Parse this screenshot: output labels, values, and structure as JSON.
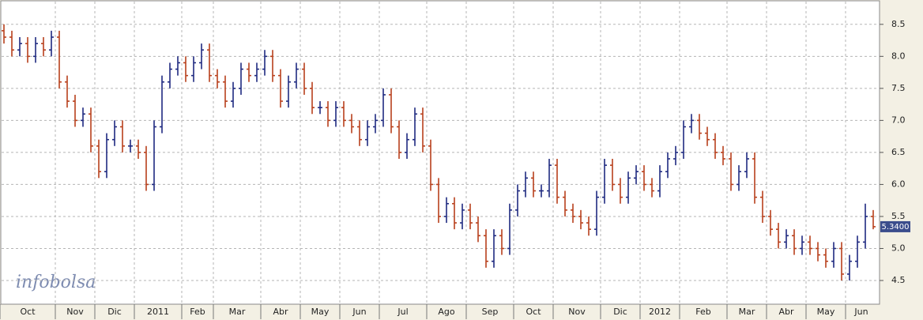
{
  "chart_data": {
    "type": "ohlc",
    "watermark": "infobolsa",
    "categories": [
      "Oct",
      null,
      null,
      null,
      null,
      null,
      null,
      "Nov",
      null,
      null,
      null,
      null,
      "Dic",
      null,
      null,
      null,
      null,
      "2011",
      null,
      null,
      null,
      null,
      null,
      "Feb",
      null,
      null,
      null,
      "Mar",
      null,
      null,
      null,
      null,
      null,
      "Abr",
      null,
      null,
      null,
      null,
      "May",
      null,
      null,
      null,
      null,
      "Jun",
      null,
      null,
      null,
      null,
      "Jul",
      null,
      null,
      null,
      null,
      null,
      "Ago",
      null,
      null,
      null,
      null,
      "Sep",
      null,
      null,
      null,
      null,
      null,
      "Oct",
      null,
      null,
      null,
      null,
      "Nov",
      null,
      null,
      null,
      null,
      null,
      "Dic",
      null,
      null,
      null,
      null,
      "2012",
      null,
      null,
      null,
      null,
      "Feb",
      null,
      null,
      null,
      null,
      null,
      "Mar",
      null,
      null,
      null,
      null,
      "Abr",
      null,
      null,
      null,
      null,
      "May",
      null,
      null,
      null,
      null,
      "Jun",
      null,
      null,
      null
    ],
    "open": [
      8.4,
      8.3,
      8.1,
      8.2,
      8.0,
      8.2,
      8.1,
      8.3,
      7.6,
      7.3,
      7.0,
      7.1,
      6.6,
      6.2,
      6.7,
      6.9,
      6.6,
      6.6,
      6.5,
      6.0,
      6.9,
      7.6,
      7.8,
      7.9,
      7.7,
      7.9,
      8.1,
      7.7,
      7.6,
      7.3,
      7.5,
      7.8,
      7.7,
      7.8,
      8.0,
      7.7,
      7.3,
      7.6,
      7.8,
      7.5,
      7.2,
      7.2,
      7.0,
      7.2,
      7.0,
      6.9,
      6.7,
      6.9,
      7.0,
      7.4,
      6.9,
      6.5,
      6.7,
      7.1,
      6.6,
      6.0,
      5.5,
      5.7,
      5.4,
      5.6,
      5.4,
      5.2,
      4.8,
      5.2,
      5.0,
      5.6,
      5.9,
      6.1,
      5.9,
      5.9,
      6.3,
      5.8,
      5.6,
      5.5,
      5.4,
      5.3,
      5.8,
      6.3,
      6.0,
      5.8,
      6.1,
      6.2,
      6.0,
      5.9,
      6.2,
      6.4,
      6.5,
      6.9,
      7.0,
      6.8,
      6.7,
      6.5,
      6.4,
      6.0,
      6.2,
      6.4,
      5.8,
      5.5,
      5.3,
      5.1,
      5.2,
      5.0,
      5.1,
      5.0,
      4.9,
      4.8,
      5.0,
      4.6,
      4.8,
      5.1,
      5.5
    ],
    "high": [
      8.5,
      8.4,
      8.3,
      8.3,
      8.3,
      8.3,
      8.4,
      8.4,
      7.7,
      7.4,
      7.2,
      7.2,
      6.7,
      6.8,
      7.0,
      7.0,
      6.7,
      6.7,
      6.6,
      7.0,
      7.7,
      7.9,
      8.0,
      8.0,
      8.0,
      8.2,
      8.2,
      7.8,
      7.7,
      7.6,
      7.9,
      7.9,
      7.9,
      8.1,
      8.1,
      7.8,
      7.7,
      7.9,
      7.9,
      7.6,
      7.3,
      7.3,
      7.3,
      7.3,
      7.1,
      7.0,
      7.0,
      7.1,
      7.5,
      7.5,
      7.0,
      6.8,
      7.2,
      7.2,
      6.7,
      6.1,
      5.8,
      5.8,
      5.7,
      5.7,
      5.5,
      5.3,
      5.3,
      5.3,
      5.7,
      6.0,
      6.2,
      6.2,
      6.0,
      6.4,
      6.4,
      5.9,
      5.7,
      5.6,
      5.5,
      5.9,
      6.4,
      6.4,
      6.1,
      6.2,
      6.3,
      6.3,
      6.1,
      6.3,
      6.5,
      6.6,
      7.0,
      7.1,
      7.1,
      6.9,
      6.8,
      6.6,
      6.5,
      6.3,
      6.5,
      6.5,
      5.9,
      5.6,
      5.4,
      5.3,
      5.3,
      5.2,
      5.2,
      5.1,
      5.0,
      5.1,
      5.1,
      4.9,
      5.2,
      5.7,
      5.6
    ],
    "low": [
      8.2,
      8.0,
      8.0,
      7.9,
      7.9,
      8.0,
      8.0,
      7.5,
      7.2,
      6.9,
      6.9,
      6.5,
      6.1,
      6.1,
      6.6,
      6.5,
      6.5,
      6.4,
      5.9,
      5.9,
      6.8,
      7.5,
      7.7,
      7.6,
      7.6,
      7.8,
      7.6,
      7.5,
      7.2,
      7.2,
      7.4,
      7.6,
      7.6,
      7.7,
      7.6,
      7.2,
      7.2,
      7.5,
      7.4,
      7.1,
      7.1,
      6.9,
      6.9,
      6.9,
      6.8,
      6.6,
      6.6,
      6.8,
      6.9,
      6.8,
      6.4,
      6.4,
      6.6,
      6.5,
      5.9,
      5.4,
      5.4,
      5.3,
      5.3,
      5.3,
      5.1,
      4.7,
      4.7,
      4.9,
      4.9,
      5.5,
      5.8,
      5.8,
      5.8,
      5.8,
      5.7,
      5.5,
      5.4,
      5.3,
      5.2,
      5.2,
      5.7,
      5.9,
      5.7,
      5.7,
      6.0,
      5.9,
      5.8,
      5.8,
      6.1,
      6.3,
      6.4,
      6.8,
      6.7,
      6.6,
      6.4,
      6.3,
      5.9,
      5.9,
      6.1,
      5.7,
      5.4,
      5.2,
      5.0,
      5.0,
      4.9,
      4.9,
      4.9,
      4.8,
      4.7,
      4.7,
      4.5,
      4.5,
      4.7,
      5.0,
      5.3
    ],
    "close": [
      8.3,
      8.1,
      8.2,
      8.0,
      8.2,
      8.1,
      8.3,
      7.6,
      7.3,
      7.0,
      7.1,
      6.6,
      6.2,
      6.7,
      6.9,
      6.6,
      6.6,
      6.5,
      6.0,
      6.9,
      7.6,
      7.8,
      7.9,
      7.7,
      7.9,
      8.1,
      7.7,
      7.6,
      7.3,
      7.5,
      7.8,
      7.7,
      7.8,
      8.0,
      7.7,
      7.3,
      7.6,
      7.8,
      7.5,
      7.2,
      7.2,
      7.0,
      7.2,
      7.0,
      6.9,
      6.7,
      6.9,
      7.0,
      7.4,
      6.9,
      6.5,
      6.7,
      7.1,
      6.6,
      6.0,
      5.5,
      5.7,
      5.4,
      5.6,
      5.4,
      5.2,
      4.8,
      5.2,
      5.0,
      5.6,
      5.9,
      6.1,
      5.9,
      5.9,
      6.3,
      5.8,
      5.6,
      5.5,
      5.4,
      5.3,
      5.8,
      6.3,
      6.0,
      5.8,
      6.1,
      6.2,
      6.0,
      5.9,
      6.2,
      6.4,
      6.5,
      6.9,
      7.0,
      6.8,
      6.7,
      6.5,
      6.4,
      6.0,
      6.2,
      6.4,
      5.8,
      5.5,
      5.3,
      5.1,
      5.2,
      5.0,
      5.1,
      5.0,
      4.9,
      4.8,
      5.0,
      4.6,
      4.8,
      5.1,
      5.5,
      5.34
    ],
    "last_close_label": "5.3400",
    "up_color": "#1f2a80",
    "down_color": "#b8401c",
    "ylim": [
      4.13,
      8.88
    ],
    "yticks": [
      4.5,
      {
        "value": 5,
        "label": "5.0"
      },
      5.5,
      {
        "value": 6,
        "label": "6.0"
      },
      6.5,
      {
        "value": 7,
        "label": "7.0"
      },
      7.5,
      {
        "value": 8,
        "label": "8.0"
      },
      8.5
    ],
    "grid": true
  }
}
